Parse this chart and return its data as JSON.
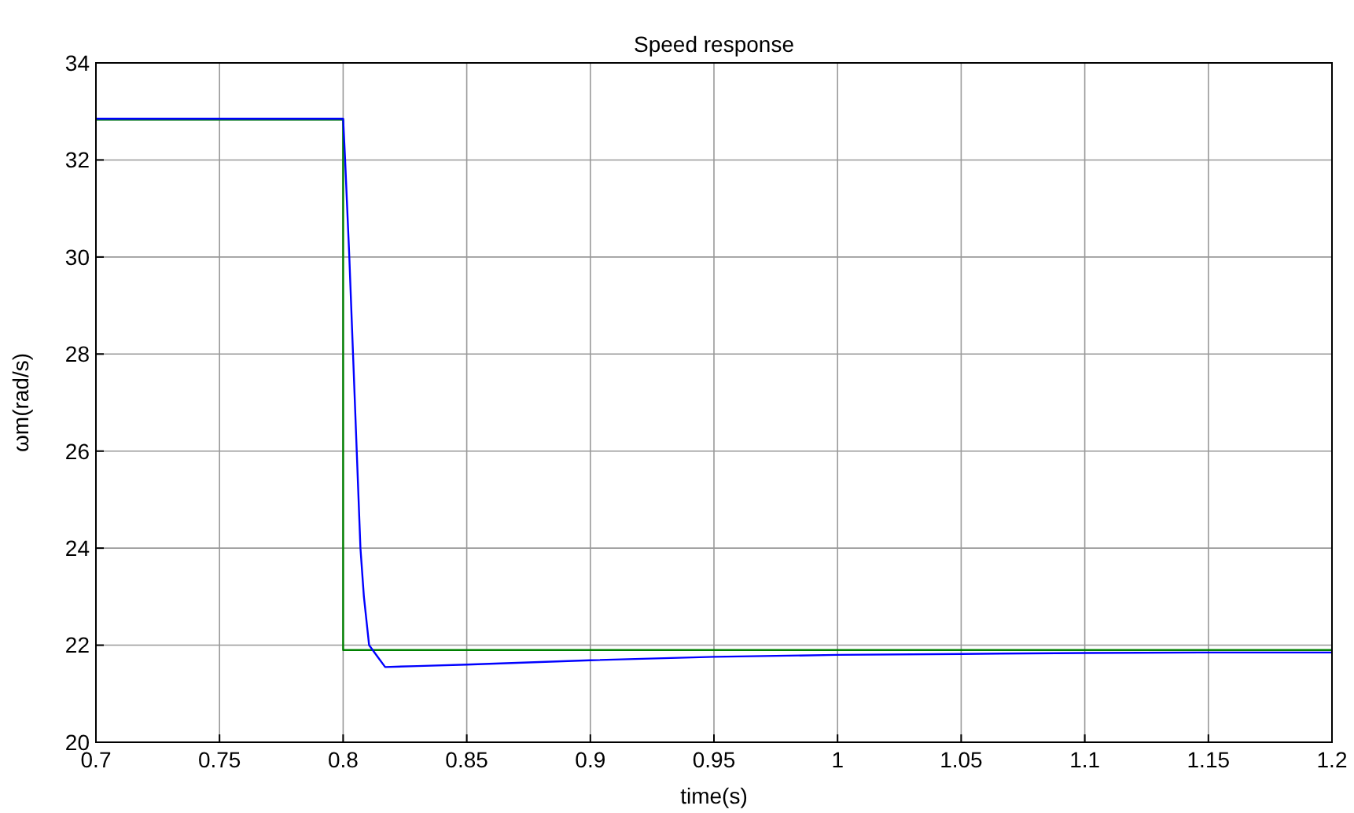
{
  "chart_data": {
    "type": "line",
    "title": "Speed response",
    "xlabel": "time(s)",
    "ylabel": "ωm(rad/s)",
    "xlim": [
      0.7,
      1.2
    ],
    "xticks": [
      0.7,
      0.75,
      0.8,
      0.85,
      0.9,
      0.95,
      1,
      1.05,
      1.1,
      1.15,
      1.2
    ],
    "ylim": [
      20,
      34
    ],
    "yticks": [
      20,
      22,
      24,
      26,
      28,
      30,
      32,
      34
    ],
    "grid": true,
    "series": [
      {
        "color": "#008000",
        "x": [
          0.7,
          0.8,
          0.8,
          1.2
        ],
        "values": [
          32.83,
          32.83,
          21.9,
          21.9
        ]
      },
      {
        "color": "#0000ff",
        "x": [
          0.7,
          0.75,
          0.8,
          0.8008,
          0.8025,
          0.804,
          0.8055,
          0.807,
          0.8084,
          0.8105,
          0.8141,
          0.817,
          0.83,
          0.85,
          0.9,
          0.95,
          1,
          1.05,
          1.1,
          1.15,
          1.2
        ],
        "values": [
          32.85,
          32.85,
          32.85,
          32,
          30,
          28,
          26,
          24,
          23,
          22,
          21.75,
          21.55,
          21.57,
          21.6,
          21.69,
          21.76,
          21.8,
          21.82,
          21.84,
          21.85,
          21.85
        ]
      }
    ]
  }
}
